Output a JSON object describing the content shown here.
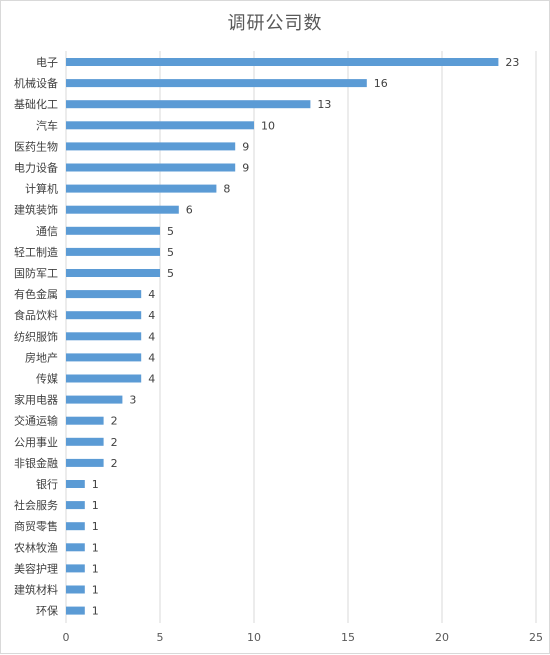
{
  "chart_data": {
    "type": "bar",
    "orientation": "horizontal",
    "title": "调研公司数",
    "xlabel": "",
    "ylabel": "",
    "categories": [
      "电子",
      "机械设备",
      "基础化工",
      "汽车",
      "医药生物",
      "电力设备",
      "计算机",
      "建筑装饰",
      "通信",
      "轻工制造",
      "国防军工",
      "有色金属",
      "食品饮料",
      "纺织服饰",
      "房地产",
      "传媒",
      "家用电器",
      "交通运输",
      "公用事业",
      "非银金融",
      "银行",
      "社会服务",
      "商贸零售",
      "农林牧渔",
      "美容护理",
      "建筑材料",
      "环保"
    ],
    "values": [
      23,
      16,
      13,
      10,
      9,
      9,
      8,
      6,
      5,
      5,
      5,
      4,
      4,
      4,
      4,
      4,
      3,
      2,
      2,
      2,
      1,
      1,
      1,
      1,
      1,
      1,
      1
    ],
    "xlim": [
      0,
      25
    ],
    "xticks": [
      0,
      5,
      10,
      15,
      20,
      25
    ],
    "grid": true,
    "legend": "none",
    "bar_color": "#5b9bd5"
  }
}
